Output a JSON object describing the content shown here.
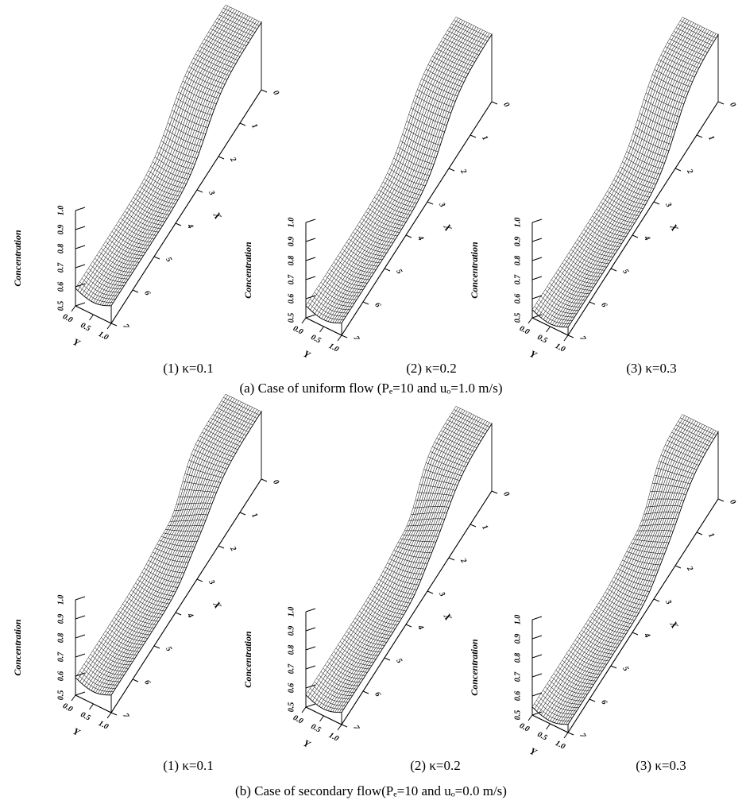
{
  "figure": {
    "rows": [
      {
        "caption": "(a) Case of uniform flow (Pₑ=10 and uₒ=1.0 m/s)",
        "panels": [
          {
            "label": "(1) κ=0.1",
            "z_label": "Concentration",
            "z_ticks": [
              "0.5",
              "0.6",
              "0.7",
              "0.8",
              "0.9",
              "1.0"
            ],
            "x_label": "X",
            "x_ticks": [
              "0",
              "1",
              "2",
              "3",
              "4",
              "5",
              "6",
              "7"
            ],
            "y_label": "Y",
            "y_ticks": [
              "0.0",
              "0.5",
              "1.0"
            ]
          },
          {
            "label": "(2) κ=0.2",
            "z_label": "Concentration",
            "z_ticks": [
              "0.5",
              "0.6",
              "0.7",
              "0.8",
              "0.9",
              "1.0"
            ],
            "x_label": "X",
            "x_ticks": [
              "0",
              "1",
              "2",
              "3",
              "4",
              "5",
              "6",
              "7"
            ],
            "y_label": "Y",
            "y_ticks": [
              "0.0",
              "0.5",
              "1.0"
            ]
          },
          {
            "label": "(3) κ=0.3",
            "z_label": "Concentration",
            "z_ticks": [
              "0.5",
              "0.6",
              "0.7",
              "0.8",
              "0.9",
              "1.0"
            ],
            "x_label": "X",
            "x_ticks": [
              "0",
              "1",
              "2",
              "3",
              "4",
              "5",
              "6",
              "7"
            ],
            "y_label": "Y",
            "y_ticks": [
              "0.0",
              "0.5",
              "1.0"
            ]
          }
        ]
      },
      {
        "caption": "(b) Case of secondary flow(Pₑ=10 and uₒ=0.0 m/s)",
        "panels": [
          {
            "label": "(1) κ=0.1",
            "z_label": "Concentration",
            "z_ticks": [
              "0.5",
              "0.6",
              "0.7",
              "0.8",
              "0.9",
              "1.0"
            ],
            "x_label": "X",
            "x_ticks": [
              "0",
              "1",
              "2",
              "3",
              "4",
              "5",
              "6",
              "7"
            ],
            "y_label": "Y",
            "y_ticks": [
              "0.0",
              "0.5",
              "1.0"
            ]
          },
          {
            "label": "(2) κ=0.2",
            "z_label": "Concentration",
            "z_ticks": [
              "0.5",
              "0.6",
              "0.7",
              "0.8",
              "0.9",
              "1.0"
            ],
            "x_label": "X",
            "x_ticks": [
              "0",
              "1",
              "2",
              "3",
              "4",
              "5",
              "6",
              "7"
            ],
            "y_label": "Y",
            "y_ticks": [
              "0.0",
              "0.5",
              "1.0"
            ]
          },
          {
            "label": "(3) κ=0.3",
            "z_label": "Concentration",
            "z_ticks": [
              "0.5",
              "0.6",
              "0.7",
              "0.8",
              "0.9",
              "1.0"
            ],
            "x_label": "X",
            "x_ticks": [
              "0",
              "1",
              "2",
              "3",
              "4",
              "5",
              "6",
              "7"
            ],
            "y_label": "Y",
            "y_ticks": [
              "0.0",
              "0.5",
              "1.0"
            ]
          }
        ]
      }
    ]
  }
}
